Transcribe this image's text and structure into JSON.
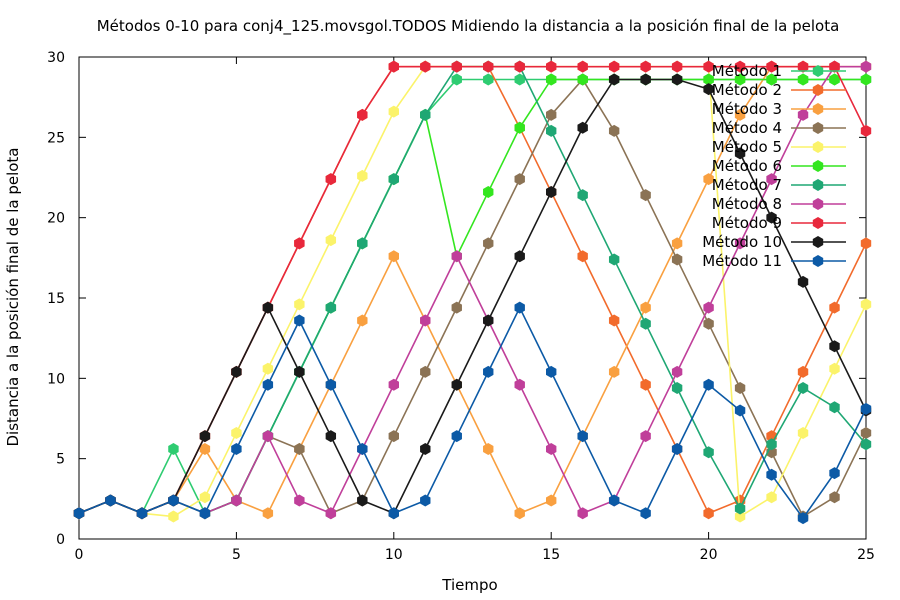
{
  "chart_data": {
    "type": "line",
    "title": "Métodos 0-10 para conj4_125.movsgol.TODOS Midiendo la distancia a la posición final de la pelota",
    "xlabel": "Tiempo",
    "ylabel": "Distancia a la posición final de la pelota",
    "xlim": [
      0,
      25
    ],
    "ylim": [
      0,
      30
    ],
    "xticks": [
      0,
      5,
      10,
      15,
      20,
      25
    ],
    "yticks": [
      0,
      5,
      10,
      15,
      20,
      25,
      30
    ],
    "grid": false,
    "legend_position": "top-right",
    "series": [
      {
        "name": "Método 1",
        "color": "#2ecc71",
        "points": [
          [
            0,
            1.6
          ],
          [
            1,
            2.4
          ],
          [
            2,
            1.6
          ],
          [
            3,
            5.6
          ],
          [
            4,
            1.6
          ],
          [
            5,
            2.4
          ],
          [
            6,
            6.4
          ],
          [
            7,
            10.4
          ],
          [
            8,
            14.4
          ],
          [
            9,
            18.4
          ],
          [
            10,
            22.4
          ],
          [
            11,
            26.4
          ],
          [
            12,
            28.6
          ],
          [
            13,
            28.6
          ],
          [
            14,
            28.6
          ],
          [
            15,
            28.6
          ],
          [
            16,
            28.6
          ],
          [
            17,
            28.6
          ],
          [
            18,
            28.6
          ],
          [
            19,
            28.6
          ],
          [
            20,
            28.6
          ],
          [
            21,
            28.6
          ],
          [
            22,
            28.6
          ],
          [
            23,
            28.6
          ],
          [
            24,
            28.6
          ],
          [
            25,
            28.6
          ]
        ]
      },
      {
        "name": "Método 2",
        "color": "#f26b2c",
        "points": [
          [
            0,
            1.6
          ],
          [
            1,
            2.4
          ],
          [
            2,
            1.6
          ],
          [
            3,
            2.4
          ],
          [
            4,
            6.4
          ],
          [
            5,
            10.4
          ],
          [
            6,
            14.4
          ],
          [
            7,
            18.4
          ],
          [
            8,
            22.4
          ],
          [
            9,
            26.4
          ],
          [
            10,
            29.4
          ],
          [
            11,
            29.4
          ],
          [
            12,
            29.4
          ],
          [
            13,
            29.4
          ],
          [
            14,
            25.6
          ],
          [
            15,
            21.6
          ],
          [
            16,
            17.6
          ],
          [
            17,
            13.6
          ],
          [
            18,
            9.6
          ],
          [
            19,
            5.6
          ],
          [
            20,
            1.6
          ],
          [
            21,
            2.4
          ],
          [
            22,
            6.4
          ],
          [
            23,
            10.4
          ],
          [
            24,
            14.4
          ],
          [
            25,
            18.4
          ]
        ]
      },
      {
        "name": "Método 3",
        "color": "#f9a040",
        "points": [
          [
            0,
            1.6
          ],
          [
            1,
            2.4
          ],
          [
            2,
            1.6
          ],
          [
            3,
            2.4
          ],
          [
            4,
            5.6
          ],
          [
            5,
            2.4
          ],
          [
            6,
            1.6
          ],
          [
            7,
            5.6
          ],
          [
            8,
            9.6
          ],
          [
            9,
            13.6
          ],
          [
            10,
            17.6
          ],
          [
            11,
            13.6
          ],
          [
            12,
            9.6
          ],
          [
            13,
            5.6
          ],
          [
            14,
            1.6
          ],
          [
            15,
            2.4
          ],
          [
            16,
            6.4
          ],
          [
            17,
            10.4
          ],
          [
            18,
            14.4
          ],
          [
            19,
            18.4
          ],
          [
            20,
            22.4
          ],
          [
            21,
            26.4
          ],
          [
            22,
            29.4
          ],
          [
            23,
            29.4
          ],
          [
            24,
            29.4
          ],
          [
            25,
            29.4
          ]
        ]
      },
      {
        "name": "Método 4",
        "color": "#8b7355",
        "points": [
          [
            0,
            1.6
          ],
          [
            1,
            2.4
          ],
          [
            2,
            1.6
          ],
          [
            3,
            2.4
          ],
          [
            4,
            1.6
          ],
          [
            5,
            2.4
          ],
          [
            6,
            6.4
          ],
          [
            7,
            5.6
          ],
          [
            8,
            1.6
          ],
          [
            9,
            2.4
          ],
          [
            10,
            6.4
          ],
          [
            11,
            10.4
          ],
          [
            12,
            14.4
          ],
          [
            13,
            18.4
          ],
          [
            14,
            22.4
          ],
          [
            15,
            26.4
          ],
          [
            16,
            28.6
          ],
          [
            17,
            25.4
          ],
          [
            18,
            21.4
          ],
          [
            19,
            17.4
          ],
          [
            20,
            13.4
          ],
          [
            21,
            9.4
          ],
          [
            22,
            5.4
          ],
          [
            23,
            1.4
          ],
          [
            24,
            2.6
          ],
          [
            25,
            6.6
          ]
        ]
      },
      {
        "name": "Método 5",
        "color": "#fbf36a",
        "points": [
          [
            0,
            1.6
          ],
          [
            1,
            2.4
          ],
          [
            2,
            1.6
          ],
          [
            3,
            1.4
          ],
          [
            4,
            2.6
          ],
          [
            5,
            6.6
          ],
          [
            6,
            10.6
          ],
          [
            7,
            14.6
          ],
          [
            8,
            18.6
          ],
          [
            9,
            22.6
          ],
          [
            10,
            26.6
          ],
          [
            11,
            29.4
          ],
          [
            12,
            29.4
          ],
          [
            13,
            29.4
          ],
          [
            14,
            29.4
          ],
          [
            15,
            29.4
          ],
          [
            16,
            29.4
          ],
          [
            17,
            29.4
          ],
          [
            18,
            29.4
          ],
          [
            19,
            29.4
          ],
          [
            20,
            29.4
          ],
          [
            21,
            1.4
          ],
          [
            22,
            2.6
          ],
          [
            23,
            6.6
          ],
          [
            24,
            10.6
          ],
          [
            25,
            14.6
          ]
        ]
      },
      {
        "name": "Método 6",
        "color": "#33e61f",
        "points": [
          [
            0,
            1.6
          ],
          [
            1,
            2.4
          ],
          [
            2,
            1.6
          ],
          [
            3,
            2.4
          ],
          [
            4,
            1.6
          ],
          [
            5,
            2.4
          ],
          [
            6,
            6.4
          ],
          [
            7,
            10.4
          ],
          [
            8,
            14.4
          ],
          [
            9,
            18.4
          ],
          [
            10,
            22.4
          ],
          [
            11,
            26.4
          ],
          [
            12,
            17.6
          ],
          [
            13,
            21.6
          ],
          [
            14,
            25.6
          ],
          [
            15,
            28.6
          ],
          [
            16,
            28.6
          ],
          [
            17,
            28.6
          ],
          [
            18,
            28.6
          ],
          [
            19,
            28.6
          ],
          [
            20,
            28.6
          ],
          [
            21,
            28.6
          ],
          [
            22,
            28.6
          ],
          [
            23,
            28.6
          ],
          [
            24,
            28.6
          ],
          [
            25,
            28.6
          ]
        ]
      },
      {
        "name": "Método 7",
        "color": "#1fa774",
        "points": [
          [
            0,
            1.6
          ],
          [
            1,
            2.4
          ],
          [
            2,
            1.6
          ],
          [
            3,
            2.4
          ],
          [
            4,
            1.6
          ],
          [
            5,
            2.4
          ],
          [
            6,
            6.4
          ],
          [
            7,
            10.4
          ],
          [
            8,
            14.4
          ],
          [
            9,
            18.4
          ],
          [
            10,
            22.4
          ],
          [
            11,
            26.4
          ],
          [
            12,
            29.4
          ],
          [
            13,
            29.4
          ],
          [
            14,
            29.4
          ],
          [
            15,
            25.4
          ],
          [
            16,
            21.4
          ],
          [
            17,
            17.4
          ],
          [
            18,
            13.4
          ],
          [
            19,
            9.4
          ],
          [
            20,
            5.4
          ],
          [
            21,
            1.9
          ],
          [
            22,
            5.9
          ],
          [
            23,
            9.4
          ],
          [
            24,
            8.2
          ],
          [
            25,
            5.9
          ]
        ]
      },
      {
        "name": "Método 8",
        "color": "#c03f9a",
        "points": [
          [
            0,
            1.6
          ],
          [
            1,
            2.4
          ],
          [
            2,
            1.6
          ],
          [
            3,
            2.4
          ],
          [
            4,
            1.6
          ],
          [
            5,
            2.4
          ],
          [
            6,
            6.4
          ],
          [
            7,
            2.4
          ],
          [
            8,
            1.6
          ],
          [
            9,
            5.6
          ],
          [
            10,
            9.6
          ],
          [
            11,
            13.6
          ],
          [
            12,
            17.6
          ],
          [
            13,
            13.6
          ],
          [
            14,
            9.6
          ],
          [
            15,
            5.6
          ],
          [
            16,
            1.6
          ],
          [
            17,
            2.4
          ],
          [
            18,
            6.4
          ],
          [
            19,
            10.4
          ],
          [
            20,
            14.4
          ],
          [
            21,
            18.4
          ],
          [
            22,
            22.4
          ],
          [
            23,
            26.4
          ],
          [
            24,
            29.4
          ],
          [
            25,
            29.4
          ]
        ]
      },
      {
        "name": "Método 9",
        "color": "#e8283c",
        "points": [
          [
            0,
            1.6
          ],
          [
            1,
            2.4
          ],
          [
            2,
            1.6
          ],
          [
            3,
            2.4
          ],
          [
            4,
            6.4
          ],
          [
            5,
            10.4
          ],
          [
            6,
            14.4
          ],
          [
            7,
            18.4
          ],
          [
            8,
            22.4
          ],
          [
            9,
            26.4
          ],
          [
            10,
            29.4
          ],
          [
            11,
            29.4
          ],
          [
            12,
            29.4
          ],
          [
            13,
            29.4
          ],
          [
            14,
            29.4
          ],
          [
            15,
            29.4
          ],
          [
            16,
            29.4
          ],
          [
            17,
            29.4
          ],
          [
            18,
            29.4
          ],
          [
            19,
            29.4
          ],
          [
            20,
            29.4
          ],
          [
            21,
            29.4
          ],
          [
            22,
            29.4
          ],
          [
            23,
            29.4
          ],
          [
            24,
            29.4
          ],
          [
            25,
            25.4
          ]
        ]
      },
      {
        "name": "Método 10",
        "color": "#1a1a1a",
        "points": [
          [
            0,
            1.6
          ],
          [
            1,
            2.4
          ],
          [
            2,
            1.6
          ],
          [
            3,
            2.4
          ],
          [
            4,
            6.4
          ],
          [
            5,
            10.4
          ],
          [
            6,
            14.4
          ],
          [
            7,
            10.4
          ],
          [
            8,
            6.4
          ],
          [
            9,
            2.4
          ],
          [
            10,
            1.6
          ],
          [
            11,
            5.6
          ],
          [
            12,
            9.6
          ],
          [
            13,
            13.6
          ],
          [
            14,
            17.6
          ],
          [
            15,
            21.6
          ],
          [
            16,
            25.6
          ],
          [
            17,
            28.6
          ],
          [
            18,
            28.6
          ],
          [
            19,
            28.6
          ],
          [
            20,
            28.0
          ],
          [
            21,
            24.0
          ],
          [
            22,
            20.0
          ],
          [
            23,
            16.0
          ],
          [
            24,
            12.0
          ],
          [
            25,
            8.0
          ]
        ]
      },
      {
        "name": "Método 11",
        "color": "#0c5aa6",
        "points": [
          [
            0,
            1.6
          ],
          [
            1,
            2.4
          ],
          [
            2,
            1.6
          ],
          [
            3,
            2.4
          ],
          [
            4,
            1.6
          ],
          [
            5,
            5.6
          ],
          [
            6,
            9.6
          ],
          [
            7,
            13.6
          ],
          [
            8,
            9.6
          ],
          [
            9,
            5.6
          ],
          [
            10,
            1.6
          ],
          [
            11,
            2.4
          ],
          [
            12,
            6.4
          ],
          [
            13,
            10.4
          ],
          [
            14,
            14.4
          ],
          [
            15,
            10.4
          ],
          [
            16,
            6.4
          ],
          [
            17,
            2.4
          ],
          [
            18,
            1.6
          ],
          [
            19,
            5.6
          ],
          [
            20,
            9.6
          ],
          [
            21,
            8.0
          ],
          [
            22,
            4.0
          ],
          [
            23,
            1.3
          ],
          [
            24,
            4.1
          ],
          [
            25,
            8.1
          ]
        ]
      }
    ]
  }
}
